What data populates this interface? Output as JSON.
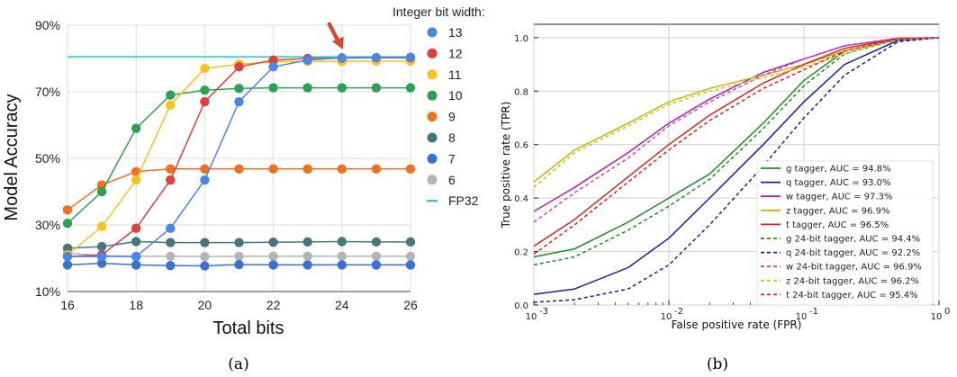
{
  "chart_data": [
    {
      "type": "line",
      "caption": "(a)",
      "xlabel": "Total bits",
      "ylabel": "Model Accuracy",
      "legend_title": "Integer bit width:",
      "x": [
        16,
        17,
        18,
        19,
        20,
        21,
        22,
        23,
        24,
        25,
        26
      ],
      "x_ticks": [
        "16",
        "18",
        "20",
        "22",
        "24",
        "26"
      ],
      "x_tick_values": [
        16,
        18,
        20,
        22,
        24,
        26
      ],
      "y_ticks": [
        "10%",
        "30%",
        "50%",
        "70%",
        "90%"
      ],
      "y_tick_values": [
        10,
        30,
        50,
        70,
        90
      ],
      "xlim": [
        16,
        26
      ],
      "ylim": [
        10,
        90
      ],
      "grid": true,
      "legend_position": "right",
      "annotation": {
        "type": "arrow",
        "x": 24,
        "y": 80.3,
        "color": "#d24a2b"
      },
      "series": [
        {
          "name": "13",
          "color": "#4a86e8",
          "values": [
            20.5,
            20.5,
            20.5,
            29,
            43.5,
            67,
            77.5,
            79.5,
            80.2,
            80.3,
            80.4
          ]
        },
        {
          "name": "12",
          "color": "#e0403a",
          "values": [
            20.5,
            21,
            29,
            43.5,
            67,
            77.5,
            79.5,
            80.0,
            80.1,
            80.2,
            80.2
          ]
        },
        {
          "name": "11",
          "color": "#f7c21c",
          "values": [
            21,
            29.5,
            43.5,
            66,
            77,
            78.3,
            79.0,
            79.1,
            79.1,
            79.2,
            79.2
          ]
        },
        {
          "name": "10",
          "color": "#2ea052",
          "values": [
            30.5,
            40,
            59,
            69,
            70.5,
            71.0,
            71.2,
            71.2,
            71.2,
            71.2,
            71.2
          ]
        },
        {
          "name": "9",
          "color": "#f26f20",
          "values": [
            34.5,
            42,
            46,
            46.8,
            46.8,
            46.8,
            46.8,
            46.8,
            46.8,
            46.8,
            46.8
          ]
        },
        {
          "name": "8",
          "color": "#45767e",
          "values": [
            23,
            23.5,
            25,
            24.7,
            24.7,
            24.7,
            24.8,
            24.9,
            25.0,
            24.9,
            24.9
          ]
        },
        {
          "name": "7",
          "color": "#3a6fd8",
          "values": [
            18,
            18.5,
            18,
            17.8,
            17.7,
            18.1,
            18,
            18,
            18,
            18,
            18
          ]
        },
        {
          "name": "6",
          "color": "#b4b4b4",
          "values": [
            21.5,
            20.8,
            20.6,
            20.6,
            20.5,
            20.6,
            20.6,
            20.6,
            20.6,
            20.6,
            20.6
          ]
        }
      ],
      "reference": {
        "name": "FP32",
        "value": 80.5,
        "color": "#3fc4c9"
      }
    },
    {
      "type": "line",
      "caption": "(b)",
      "xlabel": "False positive rate (FPR)",
      "ylabel": "True positive rate (TPR)",
      "x_scale": "log",
      "xlim": [
        0.001,
        1
      ],
      "ylim": [
        0.0,
        1.05
      ],
      "x_ticks": [
        "10",
        "10",
        "10",
        "10"
      ],
      "x_tick_exponents": [
        "-3",
        "-2",
        "-1",
        "0"
      ],
      "x_tick_values": [
        0.001,
        0.01,
        0.1,
        1
      ],
      "y_ticks": [
        "0.0",
        "0.2",
        "0.4",
        "0.6",
        "0.8",
        "1.0"
      ],
      "y_tick_values": [
        0.0,
        0.2,
        0.4,
        0.6,
        0.8,
        1.0
      ],
      "grid": true,
      "legend_position": "lower right",
      "series": [
        {
          "name": "g tagger, AUC = 94.8%",
          "color": "#1e8c1e",
          "style": "solid",
          "x": [
            0.001,
            0.002,
            0.005,
            0.01,
            0.02,
            0.05,
            0.1,
            0.2,
            0.5,
            1
          ],
          "y": [
            0.18,
            0.21,
            0.31,
            0.4,
            0.49,
            0.68,
            0.84,
            0.95,
            0.995,
            1.0
          ]
        },
        {
          "name": "q tagger, AUC = 93.0%",
          "color": "#1a1aaa",
          "style": "solid",
          "x": [
            0.001,
            0.002,
            0.005,
            0.01,
            0.02,
            0.05,
            0.1,
            0.2,
            0.5,
            1
          ],
          "y": [
            0.04,
            0.06,
            0.14,
            0.25,
            0.4,
            0.6,
            0.76,
            0.9,
            0.99,
            1.0
          ]
        },
        {
          "name": "w tagger, AUC = 97.3%",
          "color": "#b01eb0",
          "style": "solid",
          "x": [
            0.001,
            0.002,
            0.005,
            0.01,
            0.02,
            0.05,
            0.1,
            0.2,
            0.5,
            1
          ],
          "y": [
            0.35,
            0.44,
            0.57,
            0.68,
            0.77,
            0.87,
            0.92,
            0.97,
            0.998,
            1.0
          ]
        },
        {
          "name": "z tagger, AUC = 96.9%",
          "color": "#c8b400",
          "style": "solid",
          "x": [
            0.001,
            0.002,
            0.005,
            0.01,
            0.02,
            0.05,
            0.1,
            0.2,
            0.5,
            1
          ],
          "y": [
            0.46,
            0.58,
            0.68,
            0.76,
            0.81,
            0.86,
            0.9,
            0.95,
            0.995,
            1.0
          ]
        },
        {
          "name": "t tagger, AUC = 96.5%",
          "color": "#e0201a",
          "style": "solid",
          "x": [
            0.001,
            0.002,
            0.005,
            0.01,
            0.02,
            0.05,
            0.1,
            0.2,
            0.5,
            1
          ],
          "y": [
            0.22,
            0.32,
            0.48,
            0.6,
            0.71,
            0.83,
            0.9,
            0.96,
            0.997,
            1.0
          ]
        },
        {
          "name": "g 24-bit tagger, AUC = 94.4%",
          "color": "#1e8c1e",
          "style": "dashed",
          "x": [
            0.001,
            0.002,
            0.005,
            0.01,
            0.02,
            0.05,
            0.1,
            0.2,
            0.5,
            1
          ],
          "y": [
            0.15,
            0.18,
            0.28,
            0.37,
            0.47,
            0.66,
            0.82,
            0.94,
            0.993,
            1.0
          ]
        },
        {
          "name": "q 24-bit tagger, AUC = 92.2%",
          "color": "#1a1aaa",
          "style": "dashed",
          "x": [
            0.001,
            0.002,
            0.005,
            0.01,
            0.02,
            0.05,
            0.1,
            0.2,
            0.5,
            1
          ],
          "y": [
            0.01,
            0.02,
            0.06,
            0.15,
            0.3,
            0.52,
            0.7,
            0.86,
            0.985,
            1.0
          ]
        },
        {
          "name": "w 24-bit tagger, AUC = 96.9%",
          "color": "#d040d0",
          "style": "dashed",
          "x": [
            0.001,
            0.002,
            0.005,
            0.01,
            0.02,
            0.05,
            0.1,
            0.2,
            0.5,
            1
          ],
          "y": [
            0.31,
            0.42,
            0.55,
            0.67,
            0.76,
            0.86,
            0.92,
            0.97,
            0.997,
            1.0
          ]
        },
        {
          "name": "z 24-bit tagger, AUC = 96.2%",
          "color": "#d0c020",
          "style": "dashed",
          "x": [
            0.001,
            0.002,
            0.005,
            0.01,
            0.02,
            0.05,
            0.1,
            0.2,
            0.5,
            1
          ],
          "y": [
            0.44,
            0.57,
            0.67,
            0.75,
            0.8,
            0.85,
            0.89,
            0.94,
            0.993,
            1.0
          ]
        },
        {
          "name": "t 24-bit tagger, AUC = 95.4%",
          "color": "#e02020",
          "style": "dashed",
          "x": [
            0.001,
            0.002,
            0.005,
            0.01,
            0.02,
            0.05,
            0.1,
            0.2,
            0.5,
            1
          ],
          "y": [
            0.19,
            0.3,
            0.46,
            0.58,
            0.69,
            0.81,
            0.88,
            0.95,
            0.996,
            1.0
          ]
        }
      ]
    }
  ]
}
